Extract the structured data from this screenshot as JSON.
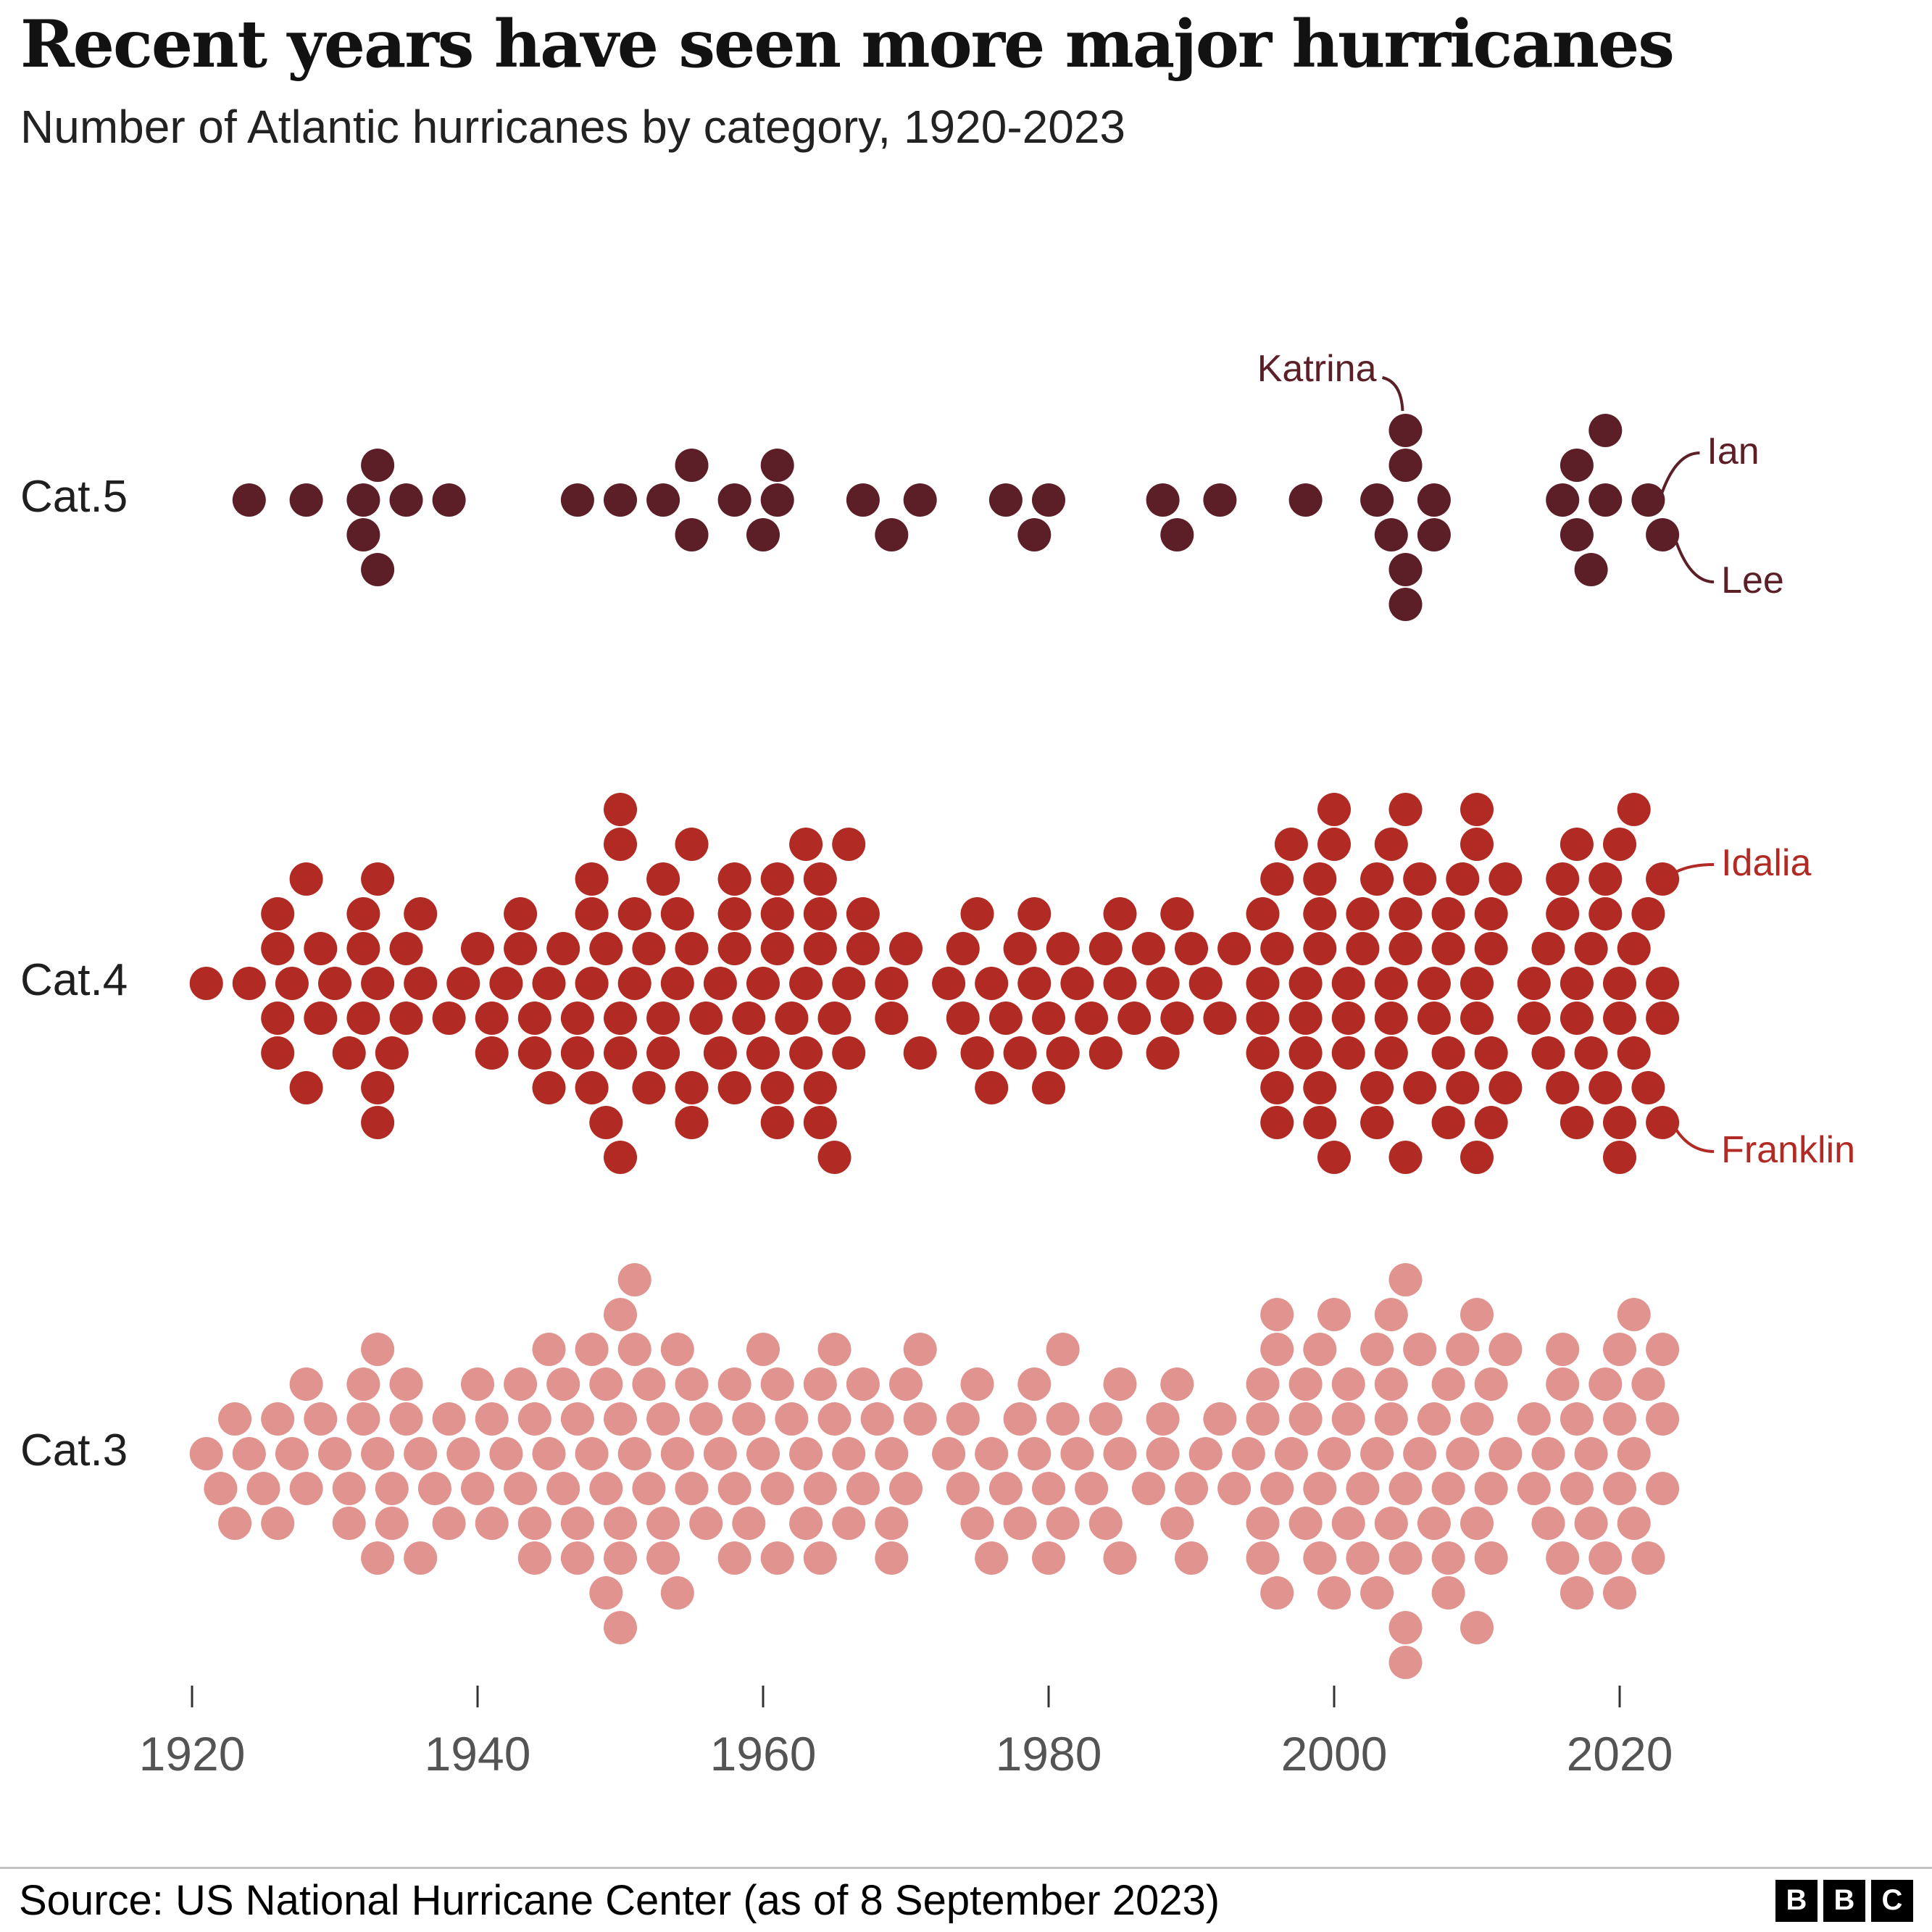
{
  "header": {
    "title": "Recent years have seen more major hurricanes",
    "subtitle": "Number of Atlantic hurricanes by category, 1920-2023"
  },
  "chart_data": {
    "type": "scatter",
    "variant": "beeswarm-strip-plot",
    "title": "Recent years have seen more major hurricanes",
    "subtitle": "Number of Atlantic hurricanes by category, 1920-2023",
    "years_start": 1920,
    "years_end": 2023,
    "xlim": [
      1918,
      2025
    ],
    "x_ticks": [
      1920,
      1940,
      1960,
      1980,
      2000,
      2020
    ],
    "rows": [
      {
        "id": "cat5",
        "label": "Cat.5",
        "color": "#5c1f27",
        "counts": [
          0,
          0,
          0,
          0,
          1,
          0,
          0,
          0,
          1,
          0,
          0,
          0,
          2,
          2,
          0,
          1,
          0,
          0,
          1,
          0,
          0,
          0,
          0,
          0,
          0,
          0,
          0,
          1,
          0,
          0,
          1,
          0,
          0,
          1,
          0,
          2,
          0,
          0,
          1,
          0,
          1,
          2,
          0,
          0,
          0,
          0,
          0,
          1,
          0,
          1,
          0,
          1,
          0,
          0,
          0,
          0,
          0,
          1,
          0,
          1,
          1,
          0,
          0,
          0,
          0,
          0,
          0,
          0,
          1,
          1,
          0,
          0,
          1,
          0,
          0,
          0,
          0,
          0,
          1,
          0,
          0,
          0,
          0,
          1,
          1,
          4,
          0,
          2,
          0,
          0,
          0,
          0,
          0,
          0,
          0,
          0,
          1,
          2,
          1,
          2,
          0,
          0,
          1,
          1
        ]
      },
      {
        "id": "cat4",
        "label": "Cat.4",
        "color": "#b12b24",
        "counts": [
          0,
          1,
          0,
          0,
          1,
          0,
          4,
          1,
          2,
          2,
          1,
          1,
          3,
          4,
          1,
          2,
          2,
          0,
          1,
          1,
          1,
          2,
          1,
          2,
          2,
          2,
          1,
          2,
          4,
          2,
          5,
          2,
          2,
          3,
          2,
          4,
          1,
          2,
          4,
          1,
          2,
          5,
          1,
          3,
          5,
          2,
          3,
          2,
          0,
          2,
          1,
          1,
          0,
          1,
          2,
          2,
          2,
          1,
          2,
          2,
          2,
          2,
          1,
          1,
          2,
          2,
          1,
          1,
          2,
          2,
          1,
          1,
          1,
          1,
          0,
          4,
          4,
          1,
          3,
          5,
          3,
          3,
          2,
          3,
          4,
          4,
          2,
          2,
          4,
          2,
          5,
          4,
          2,
          0,
          2,
          2,
          3,
          4,
          2,
          3,
          5,
          3,
          2,
          4
        ]
      },
      {
        "id": "cat3",
        "label": "Cat.3",
        "color": "#e0938f",
        "counts": [
          0,
          1,
          1,
          2,
          1,
          1,
          2,
          1,
          2,
          1,
          1,
          2,
          2,
          3,
          2,
          2,
          2,
          1,
          2,
          1,
          2,
          2,
          1,
          2,
          3,
          2,
          2,
          3,
          2,
          3,
          5,
          3,
          2,
          3,
          3,
          2,
          2,
          1,
          3,
          2,
          2,
          3,
          1,
          2,
          3,
          2,
          2,
          2,
          1,
          3,
          2,
          2,
          0,
          1,
          2,
          2,
          2,
          1,
          2,
          2,
          2,
          3,
          1,
          1,
          2,
          3,
          0,
          1,
          2,
          2,
          2,
          1,
          1,
          1,
          1,
          4,
          4,
          1,
          3,
          3,
          3,
          3,
          2,
          3,
          4,
          5,
          2,
          2,
          4,
          2,
          4,
          3,
          2,
          0,
          2,
          2,
          3,
          3,
          2,
          2,
          4,
          3,
          2,
          3
        ]
      }
    ],
    "annotations": [
      {
        "label": "Katrina",
        "row": "cat5",
        "year": 2005,
        "dot": "top",
        "side": "left",
        "offset": 0
      },
      {
        "label": "Ian",
        "row": "cat5",
        "year": 2022,
        "dot": "top",
        "side": "right",
        "offset": -65
      },
      {
        "label": "Lee",
        "row": "cat5",
        "year": 2023,
        "dot": "bottom",
        "side": "right",
        "offset": 65
      },
      {
        "label": "Idalia",
        "row": "cat4",
        "year": 2023,
        "dot": "top",
        "side": "right",
        "offset": -20
      },
      {
        "label": "Franklin",
        "row": "cat4",
        "year": 2023,
        "dot": "bottom",
        "side": "right",
        "offset": 40
      }
    ]
  },
  "footer": {
    "source": "Source: US National Hurricane Center (as of 8 September 2023)",
    "logo_letters": [
      "B",
      "B",
      "C"
    ]
  }
}
